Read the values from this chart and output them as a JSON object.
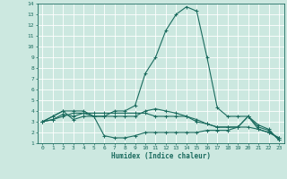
{
  "background_color": "#cce8e0",
  "grid_color": "#ffffff",
  "line_color": "#1a6b5e",
  "xlabel": "Humidex (Indice chaleur)",
  "xlim": [
    -0.5,
    23.5
  ],
  "ylim": [
    1,
    14
  ],
  "xticks": [
    0,
    1,
    2,
    3,
    4,
    5,
    6,
    7,
    8,
    9,
    10,
    11,
    12,
    13,
    14,
    15,
    16,
    17,
    18,
    19,
    20,
    21,
    22,
    23
  ],
  "yticks": [
    1,
    2,
    3,
    4,
    5,
    6,
    7,
    8,
    9,
    10,
    11,
    12,
    13,
    14
  ],
  "series": [
    {
      "x": [
        0,
        1,
        2,
        3,
        4,
        5,
        6,
        7,
        8,
        9,
        10,
        11,
        12,
        13,
        14,
        15,
        16,
        17,
        18,
        19,
        20,
        21,
        22,
        23
      ],
      "y": [
        3.0,
        3.5,
        4.0,
        4.0,
        4.0,
        3.5,
        3.5,
        4.0,
        4.0,
        4.5,
        7.5,
        9.0,
        11.5,
        13.0,
        13.7,
        13.3,
        9.0,
        4.3,
        3.5,
        3.5,
        3.5,
        2.7,
        2.3,
        1.3
      ]
    },
    {
      "x": [
        0,
        1,
        2,
        3,
        4,
        5,
        6,
        7,
        8,
        9,
        10,
        11,
        12,
        13,
        14,
        15,
        16,
        17,
        18,
        19,
        20,
        21,
        22,
        23
      ],
      "y": [
        3.0,
        3.5,
        4.0,
        3.2,
        3.5,
        3.5,
        1.7,
        1.5,
        1.5,
        1.7,
        2.0,
        2.0,
        2.0,
        2.0,
        2.0,
        2.0,
        2.2,
        2.2,
        2.2,
        2.5,
        3.5,
        2.5,
        2.2,
        1.3
      ]
    },
    {
      "x": [
        0,
        1,
        2,
        3,
        4,
        5,
        6,
        7,
        8,
        9,
        10,
        11,
        12,
        13,
        14,
        15,
        16,
        17,
        18,
        19,
        20,
        21,
        22,
        23
      ],
      "y": [
        3.0,
        3.2,
        3.5,
        3.8,
        3.8,
        3.8,
        3.8,
        3.8,
        3.8,
        3.8,
        3.8,
        3.5,
        3.5,
        3.5,
        3.5,
        3.0,
        2.8,
        2.5,
        2.5,
        2.5,
        2.5,
        2.3,
        2.0,
        1.5
      ]
    },
    {
      "x": [
        0,
        1,
        2,
        3,
        4,
        5,
        6,
        7,
        8,
        9,
        10,
        11,
        12,
        13,
        14,
        15,
        16,
        17,
        18,
        19,
        20,
        21,
        22,
        23
      ],
      "y": [
        3.0,
        3.2,
        3.7,
        3.5,
        3.8,
        3.5,
        3.5,
        3.5,
        3.5,
        3.5,
        4.0,
        4.2,
        4.0,
        3.8,
        3.5,
        3.2,
        2.8,
        2.5,
        2.5,
        2.5,
        3.5,
        2.3,
        2.0,
        1.5
      ]
    }
  ]
}
